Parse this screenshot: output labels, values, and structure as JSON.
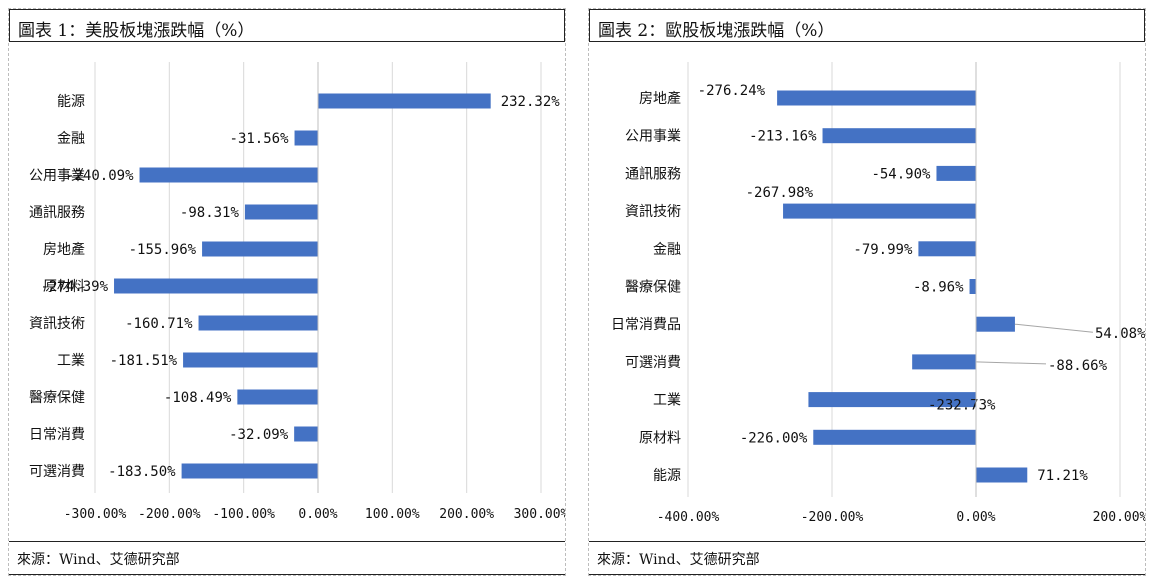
{
  "colors": {
    "bar": "#4472C4",
    "grid": "#d9d9d9",
    "axis": "#bfbfbf",
    "leader": "#a6a6a6"
  },
  "charts": [
    {
      "title": "圖表 1：美股板塊漲跌幅（%）",
      "source": "來源：Wind、艾德研究部"
    },
    {
      "title": "圖表 2：歐股板塊漲跌幅（%）",
      "source": "來源：Wind、艾德研究部"
    }
  ],
  "chart_data": [
    {
      "type": "bar",
      "orientation": "horizontal",
      "title": "圖表 1：美股板塊漲跌幅（%）",
      "categories": [
        "能源",
        "金融",
        "公用事業",
        "通訊服務",
        "房地產",
        "原材料",
        "資訊技術",
        "工業",
        "醫療保健",
        "日常消費",
        "可選消費"
      ],
      "values": [
        232.32,
        -31.56,
        -240.09,
        -98.31,
        -155.96,
        -274.39,
        -160.71,
        -181.51,
        -108.49,
        -32.09,
        -183.5
      ],
      "data_labels": [
        "232.32%",
        "-31.56%",
        "-240.09%",
        "-98.31%",
        "-155.96%",
        "-274.39%",
        "-160.71%",
        "-181.51%",
        "-108.49%",
        "-32.09%",
        "-183.50%"
      ],
      "xlim": [
        -300,
        300
      ],
      "xticks": [
        "-300.00%",
        "-200.00%",
        "-100.00%",
        "0.00%",
        "100.00%",
        "200.00%",
        "300.00%"
      ],
      "grid": true
    },
    {
      "type": "bar",
      "orientation": "horizontal",
      "title": "圖表 2：歐股板塊漲跌幅（%）",
      "categories": [
        "房地產",
        "公用事業",
        "通訊服務",
        "資訊技術",
        "金融",
        "醫療保健",
        "日常消費品",
        "可選消費",
        "工業",
        "原材料",
        "能源"
      ],
      "values": [
        -276.24,
        -213.16,
        -54.9,
        -267.98,
        -79.99,
        -8.96,
        54.08,
        -88.66,
        -232.73,
        -226.0,
        71.21
      ],
      "data_labels": [
        "-276.24%",
        "-213.16%",
        "-54.90%",
        "-267.98%",
        "-79.99%",
        "-8.96%",
        "54.08%",
        "-88.66%",
        "-232.73%",
        "-226.00%",
        "71.21%"
      ],
      "xlim": [
        -400,
        200
      ],
      "xticks": [
        "-400.00%",
        "-200.00%",
        "0.00%",
        "200.00%"
      ],
      "grid": true
    }
  ]
}
